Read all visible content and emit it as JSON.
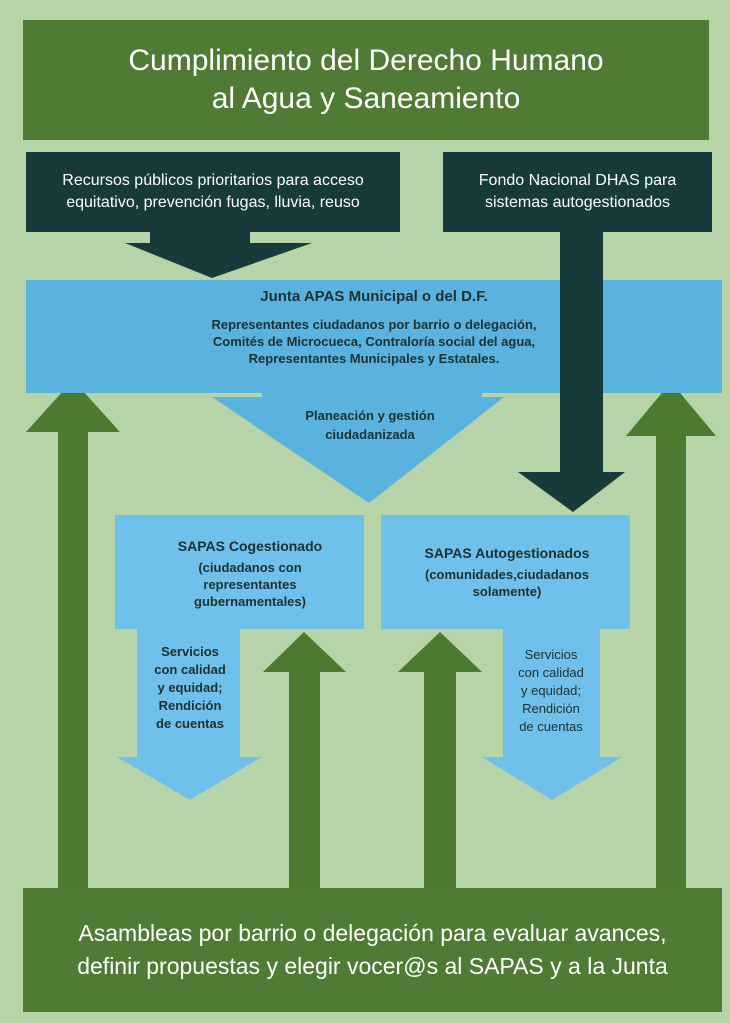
{
  "title": {
    "text": "Cumplimiento del Derecho Humano\nal Agua y Saneamiento"
  },
  "public_resources": {
    "text": "Recursos públicos prioritarios para acceso\nequitativo, prevención fugas, lluvia, reuso"
  },
  "national_fund": {
    "text": "Fondo Nacional DHAS para\nsistemas  autogestionados"
  },
  "junta": {
    "title": "Junta APAS Municipal o del D.F.",
    "body": "Representantes ciudadanos por barrio o delegación,\nComités de Microcueca, Contraloría social del agua,\nRepresentantes Municipales y Estatales."
  },
  "planeacion": {
    "text": "Planeación y gestión\nciudadanizada"
  },
  "sapas_cogestionado": {
    "title": "SAPAS Cogestionado",
    "body": "(ciudadanos con\nrepresentantes\ngubernamentales)"
  },
  "sapas_autogestionados": {
    "title": "SAPAS Autogestionados",
    "body": "(comunidades,ciudadanos\nsolamente)"
  },
  "servicios_left": {
    "text": "Servicios\ncon calidad\ny equidad;\nRendición\nde cuentas"
  },
  "servicios_right": {
    "text": "Servicios\ncon calidad\ny equidad;\nRendición\nde cuentas"
  },
  "asambleas": {
    "text": "Asambleas por barrio o delegación para evaluar avances,\ndefinir propuestas y  elegir vocer@s al SAPAS y a la Junta"
  },
  "colors": {
    "background": "#b7d3a8",
    "dark_green": "#4f7b35",
    "arrow_green": "#4c7a31",
    "dark_teal": "#173a3a",
    "blue": "#5ab2df",
    "light_blue": "#6fc0ea",
    "text_dark": "#1d3130",
    "text_light": "#ffffff"
  }
}
